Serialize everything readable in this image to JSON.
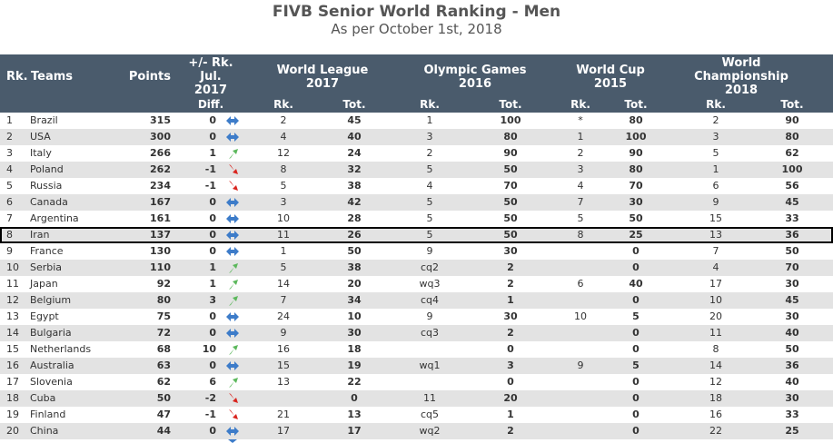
{
  "title": "FIVB Senior World Ranking - Men",
  "subtitle": "As per October 1st, 2018",
  "colors": {
    "header_bg": "#4a5b6c",
    "shaded_row": "#e3e3e3",
    "up_arrow": "#5cb85c",
    "down_arrow": "#d9241e",
    "same_arrow": "#3d7cc9"
  },
  "header": {
    "rk": "Rk.",
    "teams": "Teams",
    "points": "Points",
    "change_line1": "+/- Rk.",
    "change_line2": "Jul.",
    "change_line3": "2017",
    "change_sub": "Diff.",
    "wl_line1": "World League",
    "wl_line2": "2017",
    "og_line1": "Olympic Games",
    "og_line2": "2016",
    "wc_line1": "World Cup",
    "wc_line2": "2015",
    "ch_line1": "World",
    "ch_line2": "Championship",
    "ch_line3": "2018",
    "sub_rk": "Rk.",
    "sub_tot": "Tot."
  },
  "rows": [
    {
      "rk": "1",
      "team": "Brazil",
      "points": "315",
      "diff": "0",
      "trend": "same",
      "wl_rk": "2",
      "wl_tot": "45",
      "og_rk": "1",
      "og_tot": "100",
      "wc_rk": "*",
      "wc_tot": "80",
      "ch_rk": "2",
      "ch_tot": "90"
    },
    {
      "rk": "2",
      "team": "USA",
      "points": "300",
      "diff": "0",
      "trend": "same",
      "wl_rk": "4",
      "wl_tot": "40",
      "og_rk": "3",
      "og_tot": "80",
      "wc_rk": "1",
      "wc_tot": "100",
      "ch_rk": "3",
      "ch_tot": "80"
    },
    {
      "rk": "3",
      "team": "Italy",
      "points": "266",
      "diff": "1",
      "trend": "up",
      "wl_rk": "12",
      "wl_tot": "24",
      "og_rk": "2",
      "og_tot": "90",
      "wc_rk": "2",
      "wc_tot": "90",
      "ch_rk": "5",
      "ch_tot": "62"
    },
    {
      "rk": "4",
      "team": "Poland",
      "points": "262",
      "diff": "-1",
      "trend": "down",
      "wl_rk": "8",
      "wl_tot": "32",
      "og_rk": "5",
      "og_tot": "50",
      "wc_rk": "3",
      "wc_tot": "80",
      "ch_rk": "1",
      "ch_tot": "100"
    },
    {
      "rk": "5",
      "team": "Russia",
      "points": "234",
      "diff": "-1",
      "trend": "down",
      "wl_rk": "5",
      "wl_tot": "38",
      "og_rk": "4",
      "og_tot": "70",
      "wc_rk": "4",
      "wc_tot": "70",
      "ch_rk": "6",
      "ch_tot": "56"
    },
    {
      "rk": "6",
      "team": "Canada",
      "points": "167",
      "diff": "0",
      "trend": "same",
      "wl_rk": "3",
      "wl_tot": "42",
      "og_rk": "5",
      "og_tot": "50",
      "wc_rk": "7",
      "wc_tot": "30",
      "ch_rk": "9",
      "ch_tot": "45"
    },
    {
      "rk": "7",
      "team": "Argentina",
      "points": "161",
      "diff": "0",
      "trend": "same",
      "wl_rk": "10",
      "wl_tot": "28",
      "og_rk": "5",
      "og_tot": "50",
      "wc_rk": "5",
      "wc_tot": "50",
      "ch_rk": "15",
      "ch_tot": "33"
    },
    {
      "rk": "8",
      "team": "Iran",
      "points": "137",
      "diff": "0",
      "trend": "same",
      "wl_rk": "11",
      "wl_tot": "26",
      "og_rk": "5",
      "og_tot": "50",
      "wc_rk": "8",
      "wc_tot": "25",
      "ch_rk": "13",
      "ch_tot": "36",
      "highlight": true
    },
    {
      "rk": "9",
      "team": "France",
      "points": "130",
      "diff": "0",
      "trend": "same",
      "wl_rk": "1",
      "wl_tot": "50",
      "og_rk": "9",
      "og_tot": "30",
      "wc_rk": "",
      "wc_tot": "0",
      "ch_rk": "7",
      "ch_tot": "50"
    },
    {
      "rk": "10",
      "team": "Serbia",
      "points": "110",
      "diff": "1",
      "trend": "up",
      "wl_rk": "5",
      "wl_tot": "38",
      "og_rk": "cq2",
      "og_tot": "2",
      "wc_rk": "",
      "wc_tot": "0",
      "ch_rk": "4",
      "ch_tot": "70"
    },
    {
      "rk": "11",
      "team": "Japan",
      "points": "92",
      "diff": "1",
      "trend": "up",
      "wl_rk": "14",
      "wl_tot": "20",
      "og_rk": "wq3",
      "og_tot": "2",
      "wc_rk": "6",
      "wc_tot": "40",
      "ch_rk": "17",
      "ch_tot": "30"
    },
    {
      "rk": "12",
      "team": "Belgium",
      "points": "80",
      "diff": "3",
      "trend": "up",
      "wl_rk": "7",
      "wl_tot": "34",
      "og_rk": "cq4",
      "og_tot": "1",
      "wc_rk": "",
      "wc_tot": "0",
      "ch_rk": "10",
      "ch_tot": "45"
    },
    {
      "rk": "13",
      "team": "Egypt",
      "points": "75",
      "diff": "0",
      "trend": "same",
      "wl_rk": "24",
      "wl_tot": "10",
      "og_rk": "9",
      "og_tot": "30",
      "wc_rk": "10",
      "wc_tot": "5",
      "ch_rk": "20",
      "ch_tot": "30"
    },
    {
      "rk": "14",
      "team": "Bulgaria",
      "points": "72",
      "diff": "0",
      "trend": "same",
      "wl_rk": "9",
      "wl_tot": "30",
      "og_rk": "cq3",
      "og_tot": "2",
      "wc_rk": "",
      "wc_tot": "0",
      "ch_rk": "11",
      "ch_tot": "40"
    },
    {
      "rk": "15",
      "team": "Netherlands",
      "points": "68",
      "diff": "10",
      "trend": "up",
      "wl_rk": "16",
      "wl_tot": "18",
      "og_rk": "",
      "og_tot": "0",
      "wc_rk": "",
      "wc_tot": "0",
      "ch_rk": "8",
      "ch_tot": "50"
    },
    {
      "rk": "16",
      "team": "Australia",
      "points": "63",
      "diff": "0",
      "trend": "same",
      "wl_rk": "15",
      "wl_tot": "19",
      "og_rk": "wq1",
      "og_tot": "3",
      "wc_rk": "9",
      "wc_tot": "5",
      "ch_rk": "14",
      "ch_tot": "36"
    },
    {
      "rk": "17",
      "team": "Slovenia",
      "points": "62",
      "diff": "6",
      "trend": "up",
      "wl_rk": "13",
      "wl_tot": "22",
      "og_rk": "",
      "og_tot": "0",
      "wc_rk": "",
      "wc_tot": "0",
      "ch_rk": "12",
      "ch_tot": "40"
    },
    {
      "rk": "18",
      "team": "Cuba",
      "points": "50",
      "diff": "-2",
      "trend": "down",
      "wl_rk": "",
      "wl_tot": "0",
      "og_rk": "11",
      "og_tot": "20",
      "wc_rk": "",
      "wc_tot": "0",
      "ch_rk": "18",
      "ch_tot": "30"
    },
    {
      "rk": "19",
      "team": "Finland",
      "points": "47",
      "diff": "-1",
      "trend": "down",
      "wl_rk": "21",
      "wl_tot": "13",
      "og_rk": "cq5",
      "og_tot": "1",
      "wc_rk": "",
      "wc_tot": "0",
      "ch_rk": "16",
      "ch_tot": "33"
    },
    {
      "rk": "20",
      "team": "China",
      "points": "44",
      "diff": "0",
      "trend": "same",
      "wl_rk": "17",
      "wl_tot": "17",
      "og_rk": "wq2",
      "og_tot": "2",
      "wc_rk": "",
      "wc_tot": "0",
      "ch_rk": "22",
      "ch_tot": "25"
    }
  ]
}
